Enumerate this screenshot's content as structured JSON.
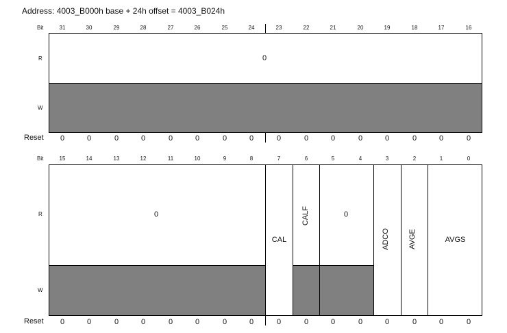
{
  "address": "Address: 4003_B000h base + 24h offset = 4003_B024h",
  "labels": {
    "bit": "Bit",
    "r": "R",
    "w": "W",
    "reset": "Reset"
  },
  "upper": {
    "bits": [
      "31",
      "30",
      "29",
      "28",
      "27",
      "26",
      "25",
      "24",
      "23",
      "22",
      "21",
      "20",
      "19",
      "18",
      "17",
      "16"
    ],
    "r_value": "0",
    "reset": [
      "0",
      "0",
      "0",
      "0",
      "0",
      "0",
      "0",
      "0",
      "0",
      "0",
      "0",
      "0",
      "0",
      "0",
      "0",
      "0"
    ]
  },
  "lower": {
    "bits": [
      "15",
      "14",
      "13",
      "12",
      "11",
      "10",
      "9",
      "8",
      "7",
      "6",
      "5",
      "4",
      "3",
      "2",
      "1",
      "0"
    ],
    "reserved_high_r": "0",
    "cal": "CAL",
    "calf": "CALF",
    "reserved_mid_r": "0",
    "adco": "ADCO",
    "avge": "AVGE",
    "avgs": "AVGS",
    "reset": [
      "0",
      "0",
      "0",
      "0",
      "0",
      "0",
      "0",
      "0",
      "0",
      "0",
      "0",
      "0",
      "0",
      "0",
      "0",
      "0"
    ]
  }
}
